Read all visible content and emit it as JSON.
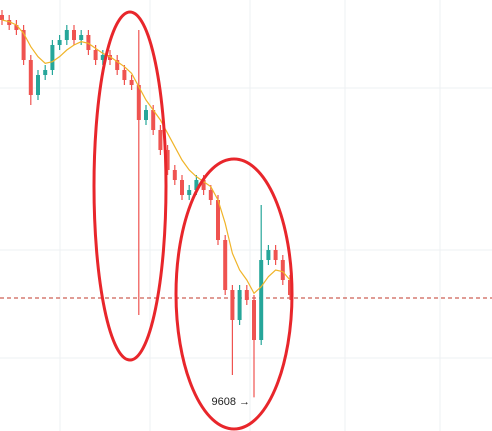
{
  "chart_data": {
    "type": "candlestick",
    "annotation": "9608 →",
    "annotation_index": 35,
    "ylim": [
      9507,
      10800
    ],
    "price_line": 9906,
    "up_color": "#26a69a",
    "down_color": "#ef5350",
    "ma_color": "#f0b429",
    "price_line_color": "#c0392b",
    "open": [
      10755,
      10740,
      10725,
      10710,
      10620,
      10515,
      10575,
      10590,
      10665,
      10680,
      10710,
      10680,
      10695,
      10650,
      10620,
      10635,
      10620,
      10590,
      10560,
      10545,
      10440,
      10470,
      10410,
      10350,
      10290,
      10260,
      10215,
      10230,
      10260,
      10230,
      10200,
      10080,
      9930,
      9840,
      9930,
      9900,
      9780,
      10020,
      10050,
      10020,
      9960
    ],
    "close": [
      10740,
      10725,
      10710,
      10620,
      10515,
      10575,
      10590,
      10665,
      10680,
      10710,
      10680,
      10695,
      10650,
      10620,
      10635,
      10620,
      10590,
      10560,
      10545,
      10440,
      10470,
      10410,
      10350,
      10290,
      10260,
      10215,
      10230,
      10260,
      10230,
      10200,
      10080,
      9930,
      9840,
      9930,
      9900,
      9780,
      10020,
      10050,
      10020,
      9960,
      9915
    ],
    "high": [
      10770,
      10755,
      10740,
      10725,
      10635,
      10590,
      10605,
      10680,
      10695,
      10725,
      10725,
      10710,
      10710,
      10665,
      10650,
      10650,
      10635,
      10605,
      10575,
      10710,
      10485,
      10485,
      10425,
      10365,
      10305,
      10275,
      10245,
      10275,
      10275,
      10245,
      10215,
      10095,
      9945,
      9945,
      9945,
      9915,
      10185,
      10065,
      10065,
      10035,
      9975
    ],
    "low": [
      10725,
      10710,
      10695,
      10605,
      10485,
      10500,
      10560,
      10575,
      10650,
      10665,
      10665,
      10665,
      10635,
      10605,
      10605,
      10605,
      10575,
      10545,
      10530,
      9855,
      10425,
      10395,
      10335,
      10275,
      10245,
      10200,
      10200,
      10215,
      10215,
      10185,
      10065,
      9915,
      9675,
      9825,
      9885,
      9608,
      9765,
      10005,
      10005,
      9945,
      9900
    ],
    "ma": [
      10740,
      10735,
      10725,
      10700,
      10660,
      10630,
      10610,
      10615,
      10630,
      10650,
      10665,
      10675,
      10670,
      10655,
      10640,
      10630,
      10615,
      10600,
      10580,
      10540,
      10500,
      10470,
      10440,
      10400,
      10360,
      10320,
      10290,
      10270,
      10255,
      10240,
      10200,
      10130,
      10040,
      9990,
      9960,
      9920,
      9940,
      9970,
      9990,
      9985,
      9960
    ]
  }
}
